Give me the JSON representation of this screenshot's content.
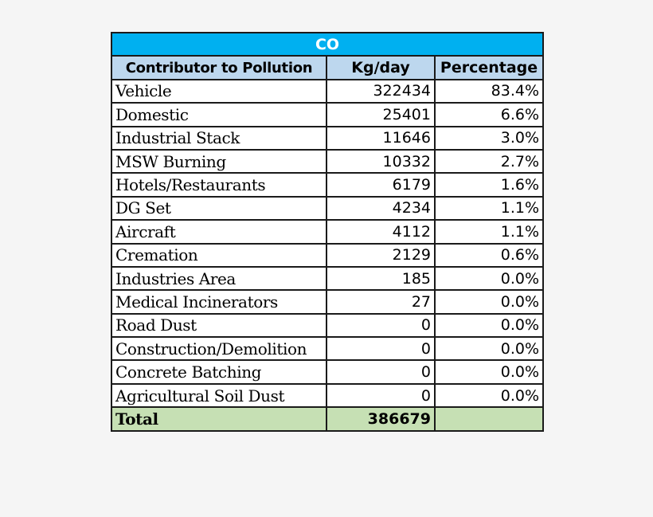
{
  "table": {
    "title": "CO",
    "headers": {
      "contributor": "Contributor to Pollution",
      "kg_per_day": "Kg/day",
      "percentage": "Percentage"
    },
    "rows": [
      {
        "contributor": "Vehicle",
        "kg_per_day": "322434",
        "percentage": "83.4%"
      },
      {
        "contributor": "Domestic",
        "kg_per_day": "25401",
        "percentage": "6.6%"
      },
      {
        "contributor": "Industrial Stack",
        "kg_per_day": "11646",
        "percentage": "3.0%"
      },
      {
        "contributor": "MSW Burning",
        "kg_per_day": "10332",
        "percentage": "2.7%"
      },
      {
        "contributor": "Hotels/Restaurants",
        "kg_per_day": "6179",
        "percentage": "1.6%"
      },
      {
        "contributor": "DG Set",
        "kg_per_day": "4234",
        "percentage": "1.1%"
      },
      {
        "contributor": "Aircraft",
        "kg_per_day": "4112",
        "percentage": "1.1%"
      },
      {
        "contributor": "Cremation",
        "kg_per_day": "2129",
        "percentage": "0.6%"
      },
      {
        "contributor": "Industries Area",
        "kg_per_day": "185",
        "percentage": "0.0%"
      },
      {
        "contributor": "Medical Incinerators",
        "kg_per_day": "27",
        "percentage": "0.0%"
      },
      {
        "contributor": "Road Dust",
        "kg_per_day": "0",
        "percentage": "0.0%"
      },
      {
        "contributor": "Construction/Demolition",
        "kg_per_day": "0",
        "percentage": "0.0%"
      },
      {
        "contributor": "Concrete Batching",
        "kg_per_day": "0",
        "percentage": "0.0%"
      },
      {
        "contributor": "Agricultural Soil Dust",
        "kg_per_day": "0",
        "percentage": "0.0%"
      }
    ],
    "total": {
      "label": "Total",
      "kg_per_day": "386679",
      "percentage": ""
    }
  },
  "colors": {
    "title_bg": "#00b0f0",
    "header_bg": "#bdd7ee",
    "total_bg": "#c6e0b4",
    "page_bg": "#f5f5f5"
  }
}
